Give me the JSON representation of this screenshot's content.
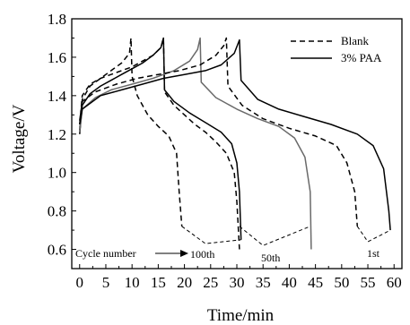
{
  "chart_data": {
    "type": "line",
    "xlabel": "Time/min",
    "ylabel": "Voltage/V",
    "xlim": [
      -1.5,
      61.5
    ],
    "ylim": [
      0.5,
      1.8
    ],
    "xticks": [
      0,
      5,
      10,
      15,
      20,
      25,
      30,
      35,
      40,
      45,
      50,
      55,
      60
    ],
    "yticks": [
      0.6,
      0.8,
      1.0,
      1.2,
      1.4,
      1.6,
      1.8
    ],
    "ytick_labels": [
      "0.6",
      "0.8",
      "1.0",
      "1.2",
      "1.4",
      "1.6",
      "1.8"
    ],
    "legend": {
      "position": "top-right",
      "entries": [
        {
          "label": "Blank",
          "style": "dashed"
        },
        {
          "label": "3% PAA",
          "style": "solid"
        }
      ]
    },
    "annotations": {
      "cycle_number": "Cycle number",
      "cycle_100": "100th",
      "cycle_50": "50th",
      "cycle_1": "1st"
    },
    "series": [
      {
        "name": "Blank",
        "cycle": "100th",
        "style": "dashed",
        "color": "#000000",
        "x": [
          0,
          0.5,
          2,
          4,
          6,
          8,
          9.5,
          9.8,
          10,
          11,
          13,
          15,
          17,
          18.5,
          19,
          19.5
        ],
        "y": [
          1.22,
          1.38,
          1.45,
          1.49,
          1.53,
          1.57,
          1.62,
          1.7,
          1.5,
          1.4,
          1.3,
          1.24,
          1.19,
          1.1,
          0.9,
          0.72
        ]
      },
      {
        "name": "3% PAA",
        "cycle": "100th",
        "style": "solid",
        "color": "#000000",
        "x": [
          0,
          0.5,
          2,
          4,
          6,
          8,
          10,
          12,
          14,
          15.5,
          16,
          16.2,
          18,
          21,
          24,
          27,
          29,
          30,
          30.5,
          30.8
        ],
        "y": [
          1.2,
          1.35,
          1.41,
          1.45,
          1.48,
          1.51,
          1.54,
          1.57,
          1.61,
          1.65,
          1.7,
          1.43,
          1.37,
          1.31,
          1.26,
          1.21,
          1.15,
          1.05,
          0.9,
          0.65
        ]
      },
      {
        "name": "Blank",
        "cycle": "50th",
        "style": "dashed",
        "color": "#000000",
        "x": [
          0,
          0.5,
          2,
          4,
          6,
          8,
          10,
          12,
          14,
          15.5,
          16,
          16.2,
          18,
          20,
          22,
          24,
          26,
          28,
          29.5,
          30,
          30.5
        ],
        "y": [
          1.25,
          1.4,
          1.46,
          1.49,
          1.51,
          1.53,
          1.55,
          1.58,
          1.61,
          1.65,
          1.7,
          1.42,
          1.35,
          1.3,
          1.25,
          1.21,
          1.16,
          1.1,
          1.0,
          0.85,
          0.6
        ]
      },
      {
        "name": "3% PAA",
        "cycle": "50th",
        "style": "solid",
        "color": "#6a6a6a",
        "x": [
          0,
          0.5,
          3,
          6,
          10,
          14,
          18,
          21,
          22.5,
          23,
          23.2,
          26,
          30,
          34,
          38,
          41,
          43,
          44,
          44.2
        ],
        "y": [
          1.21,
          1.33,
          1.39,
          1.43,
          1.46,
          1.49,
          1.53,
          1.58,
          1.64,
          1.7,
          1.47,
          1.39,
          1.33,
          1.28,
          1.24,
          1.18,
          1.08,
          0.9,
          0.6
        ]
      },
      {
        "name": "Blank",
        "cycle": "1st",
        "style": "dashed",
        "color": "#000000",
        "x": [
          0,
          0.5,
          3,
          7,
          11,
          15,
          19,
          23,
          26,
          27.5,
          28,
          28.3,
          31,
          35,
          40,
          45,
          49,
          51,
          52.5,
          53
        ],
        "y": [
          1.27,
          1.37,
          1.42,
          1.46,
          1.49,
          1.51,
          1.53,
          1.56,
          1.61,
          1.66,
          1.7,
          1.45,
          1.35,
          1.28,
          1.23,
          1.19,
          1.14,
          1.05,
          0.9,
          0.72
        ]
      },
      {
        "name": "3% PAA",
        "cycle": "1st",
        "style": "solid",
        "color": "#000000",
        "x": [
          0,
          0.5,
          4,
          8,
          12,
          16,
          20,
          24,
          27,
          29.5,
          30.5,
          30.8,
          34,
          38,
          43,
          48,
          53,
          56,
          58,
          59,
          59.3
        ],
        "y": [
          1.25,
          1.33,
          1.4,
          1.43,
          1.46,
          1.49,
          1.51,
          1.53,
          1.56,
          1.62,
          1.69,
          1.48,
          1.38,
          1.33,
          1.29,
          1.25,
          1.2,
          1.14,
          1.02,
          0.8,
          0.7
        ]
      }
    ]
  }
}
